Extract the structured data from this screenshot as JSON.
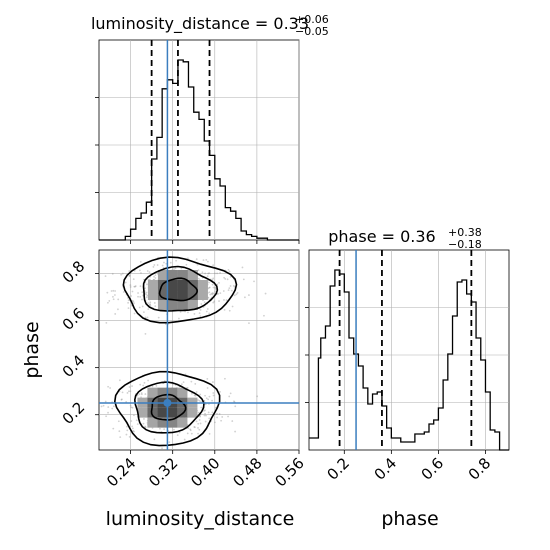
{
  "chart_data": {
    "type": "corner",
    "parameters": [
      "luminosity_distance",
      "phase"
    ],
    "truth": {
      "luminosity_distance": 0.31,
      "phase": 0.25
    },
    "panels": [
      {
        "id": "hist-luminosity_distance",
        "type": "histogram",
        "title_main": "luminosity_distance = 0.33",
        "title_sup": "+0.06",
        "title_sub": "−0.05",
        "xlim": [
          0.18,
          0.56
        ],
        "quantiles": [
          0.28,
          0.33,
          0.39
        ],
        "bins": [
          0.18,
          0.19,
          0.2,
          0.21,
          0.22,
          0.23,
          0.24,
          0.25,
          0.26,
          0.27,
          0.28,
          0.29,
          0.3,
          0.31,
          0.32,
          0.33,
          0.34,
          0.35,
          0.36,
          0.37,
          0.38,
          0.39,
          0.4,
          0.41,
          0.42,
          0.43,
          0.44,
          0.45,
          0.46,
          0.47,
          0.48,
          0.49,
          0.5,
          0.51,
          0.52,
          0.53,
          0.54,
          0.55,
          0.56
        ],
        "counts": [
          0,
          0,
          0,
          0,
          0,
          0.02,
          0.06,
          0.12,
          0.15,
          0.21,
          0.45,
          0.57,
          0.84,
          0.89,
          0.87,
          1.0,
          0.99,
          0.85,
          0.71,
          0.67,
          0.55,
          0.47,
          0.34,
          0.3,
          0.18,
          0.16,
          0.12,
          0.05,
          0.03,
          0.02,
          0.01,
          0.01,
          0,
          0,
          0,
          0,
          0,
          0
        ]
      },
      {
        "id": "hist-phase",
        "type": "histogram",
        "title_main": "phase = 0.36",
        "title_sup": "+0.38",
        "title_sub": "−0.18",
        "xlim": [
          0.05,
          0.9
        ],
        "quantiles": [
          0.18,
          0.36,
          0.74
        ],
        "bins": [
          0.05,
          0.09,
          0.1,
          0.12,
          0.14,
          0.16,
          0.18,
          0.2,
          0.22,
          0.24,
          0.26,
          0.28,
          0.3,
          0.32,
          0.34,
          0.36,
          0.38,
          0.4,
          0.44,
          0.5,
          0.54,
          0.56,
          0.58,
          0.6,
          0.62,
          0.64,
          0.66,
          0.68,
          0.7,
          0.72,
          0.74,
          0.76,
          0.78,
          0.8,
          0.82,
          0.84,
          0.86,
          0.9
        ],
        "counts": [
          0.06,
          0.46,
          0.56,
          0.62,
          0.82,
          0.9,
          0.88,
          0.79,
          0.56,
          0.48,
          0.42,
          0.31,
          0.23,
          0.28,
          0.29,
          0.22,
          0.11,
          0.06,
          0.04,
          0.08,
          0.09,
          0.13,
          0.15,
          0.21,
          0.35,
          0.48,
          0.67,
          0.84,
          0.85,
          0.78,
          0.74,
          0.56,
          0.45,
          0.29,
          0.1,
          0.09,
          0.0
        ]
      },
      {
        "id": "joint-luminosity_distance-phase",
        "type": "2d-density",
        "xlim": [
          0.18,
          0.56
        ],
        "ylim": [
          0.05,
          0.9
        ],
        "modes": [
          {
            "x": 0.33,
            "y": 0.73,
            "sx": 0.05,
            "sy": 0.05,
            "weight": 0.55
          },
          {
            "x": 0.31,
            "y": 0.23,
            "sx": 0.045,
            "sy": 0.055,
            "weight": 0.45
          }
        ]
      }
    ],
    "x_axis_lower_left": {
      "label": "luminosity_distance",
      "ticks": [
        "0.24",
        "0.32",
        "0.40",
        "0.48",
        "0.56"
      ]
    },
    "y_axis_lower_left": {
      "label": "phase",
      "ticks": [
        "0.2",
        "0.4",
        "0.6",
        "0.8"
      ]
    },
    "x_axis_lower_right": {
      "label": "phase",
      "ticks": [
        "0.2",
        "0.4",
        "0.6",
        "0.8"
      ]
    },
    "grid": true,
    "colors": {
      "line": "#000000",
      "truth": "#3b7ebf",
      "grid": "#b0b0b0",
      "points": "#9a9a9a"
    }
  }
}
